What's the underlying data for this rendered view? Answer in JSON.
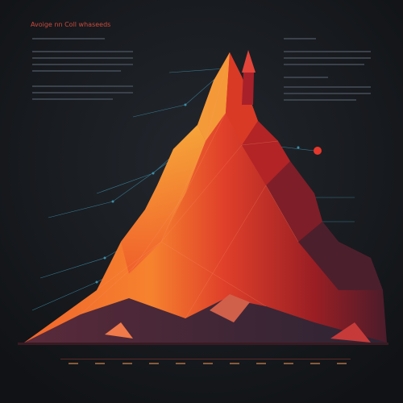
{
  "header": {
    "title": "Avoige nn Coll whaseeds"
  }
}
